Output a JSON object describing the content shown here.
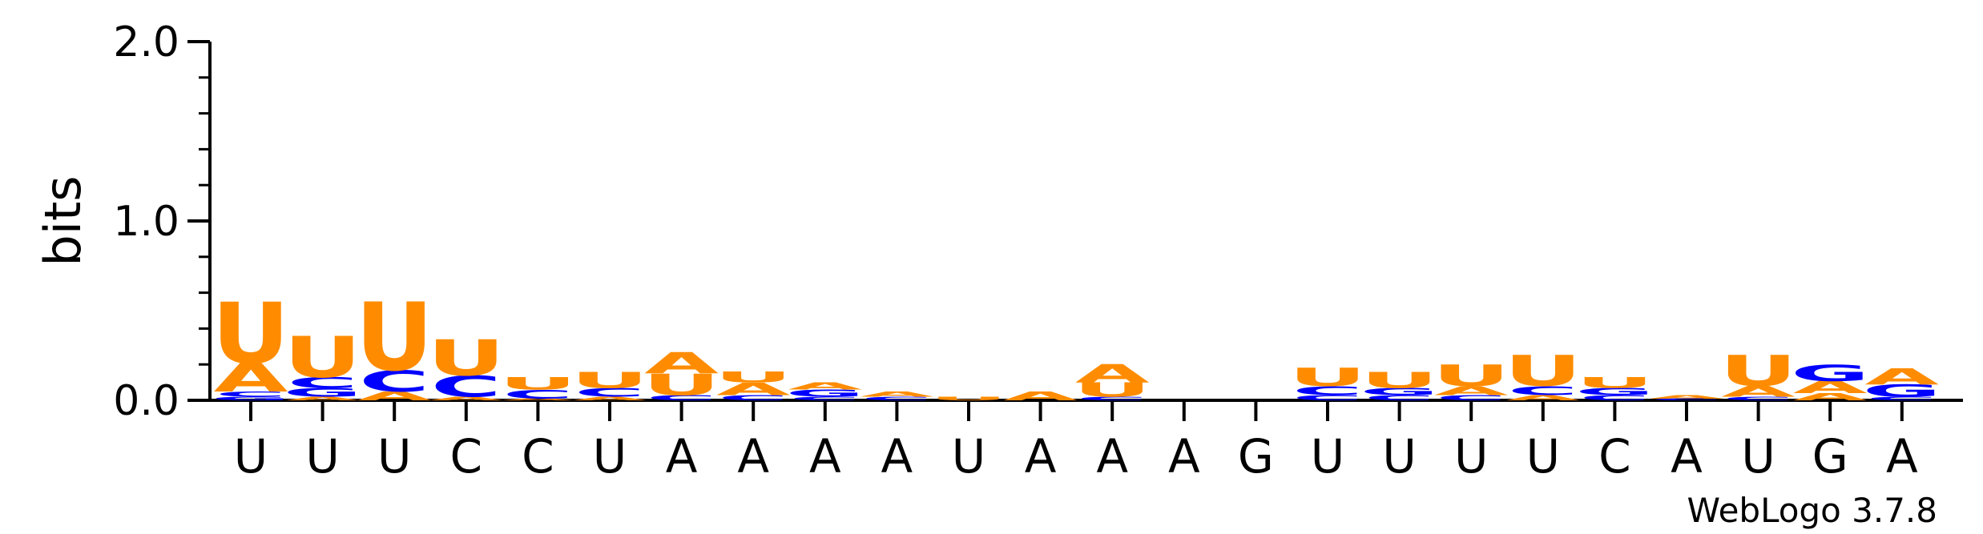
{
  "chart_data": {
    "type": "sequence-logo",
    "ylabel": "bits",
    "ylim": [
      0,
      2.0
    ],
    "yticks": [
      "0.0",
      "1.0",
      "2.0"
    ],
    "credit": "WebLogo 3.7.8",
    "colors": {
      "U": "#ff8c00",
      "A": "#ff8c00",
      "C": "#0000ff",
      "G": "#0000ff"
    },
    "positions": [
      {
        "label": "U",
        "stack": [
          {
            "letter": "G",
            "bits": 0.02
          },
          {
            "letter": "C",
            "bits": 0.03
          },
          {
            "letter": "A",
            "bits": 0.16
          },
          {
            "letter": "U",
            "bits": 0.34
          }
        ]
      },
      {
        "label": "U",
        "stack": [
          {
            "letter": "A",
            "bits": 0.02
          },
          {
            "letter": "G",
            "bits": 0.05
          },
          {
            "letter": "C",
            "bits": 0.06
          },
          {
            "letter": "U",
            "bits": 0.23
          }
        ]
      },
      {
        "label": "U",
        "stack": [
          {
            "letter": "A",
            "bits": 0.05
          },
          {
            "letter": "C",
            "bits": 0.12
          },
          {
            "letter": "U",
            "bits": 0.38
          }
        ]
      },
      {
        "label": "C",
        "stack": [
          {
            "letter": "A",
            "bits": 0.02
          },
          {
            "letter": "C",
            "bits": 0.12
          },
          {
            "letter": "U",
            "bits": 0.2
          }
        ]
      },
      {
        "label": "C",
        "stack": [
          {
            "letter": "A",
            "bits": 0.01
          },
          {
            "letter": "C",
            "bits": 0.05
          },
          {
            "letter": "U",
            "bits": 0.07
          }
        ]
      },
      {
        "label": "U",
        "stack": [
          {
            "letter": "A",
            "bits": 0.02
          },
          {
            "letter": "C",
            "bits": 0.05
          },
          {
            "letter": "U",
            "bits": 0.09
          }
        ]
      },
      {
        "label": "A",
        "stack": [
          {
            "letter": "C",
            "bits": 0.03
          },
          {
            "letter": "U",
            "bits": 0.12
          },
          {
            "letter": "A",
            "bits": 0.12
          }
        ]
      },
      {
        "label": "A",
        "stack": [
          {
            "letter": "C",
            "bits": 0.03
          },
          {
            "letter": "A",
            "bits": 0.07
          },
          {
            "letter": "U",
            "bits": 0.06
          }
        ]
      },
      {
        "label": "A",
        "stack": [
          {
            "letter": "C",
            "bits": 0.02
          },
          {
            "letter": "G",
            "bits": 0.04
          },
          {
            "letter": "A",
            "bits": 0.04
          }
        ]
      },
      {
        "label": "A",
        "stack": [
          {
            "letter": "C",
            "bits": 0.02
          },
          {
            "letter": "A",
            "bits": 0.03
          }
        ]
      },
      {
        "label": "U",
        "stack": [
          {
            "letter": "U",
            "bits": 0.02
          }
        ]
      },
      {
        "label": "A",
        "stack": [
          {
            "letter": "A",
            "bits": 0.05
          }
        ]
      },
      {
        "label": "A",
        "stack": [
          {
            "letter": "C",
            "bits": 0.02
          },
          {
            "letter": "U",
            "bits": 0.08
          },
          {
            "letter": "A",
            "bits": 0.1
          }
        ]
      },
      {
        "label": "A",
        "stack": []
      },
      {
        "label": "G",
        "stack": []
      },
      {
        "label": "U",
        "stack": [
          {
            "letter": "C",
            "bits": 0.03
          },
          {
            "letter": "C",
            "bits": 0.05
          },
          {
            "letter": "U",
            "bits": 0.1
          }
        ]
      },
      {
        "label": "U",
        "stack": [
          {
            "letter": "C",
            "bits": 0.03
          },
          {
            "letter": "G",
            "bits": 0.04
          },
          {
            "letter": "U",
            "bits": 0.09
          }
        ]
      },
      {
        "label": "U",
        "stack": [
          {
            "letter": "C",
            "bits": 0.03
          },
          {
            "letter": "A",
            "bits": 0.05
          },
          {
            "letter": "U",
            "bits": 0.12
          }
        ]
      },
      {
        "label": "U",
        "stack": [
          {
            "letter": "A",
            "bits": 0.03
          },
          {
            "letter": "C",
            "bits": 0.05
          },
          {
            "letter": "U",
            "bits": 0.17
          }
        ]
      },
      {
        "label": "C",
        "stack": [
          {
            "letter": "C",
            "bits": 0.03
          },
          {
            "letter": "G",
            "bits": 0.04
          },
          {
            "letter": "U",
            "bits": 0.06
          }
        ]
      },
      {
        "label": "A",
        "stack": [
          {
            "letter": "C",
            "bits": 0.01
          },
          {
            "letter": "A",
            "bits": 0.02
          }
        ]
      },
      {
        "label": "U",
        "stack": [
          {
            "letter": "C",
            "bits": 0.02
          },
          {
            "letter": "A",
            "bits": 0.06
          },
          {
            "letter": "U",
            "bits": 0.17
          }
        ]
      },
      {
        "label": "G",
        "stack": [
          {
            "letter": "A",
            "bits": 0.04
          },
          {
            "letter": "A",
            "bits": 0.07
          },
          {
            "letter": "G",
            "bits": 0.09
          }
        ]
      },
      {
        "label": "A",
        "stack": [
          {
            "letter": "C",
            "bits": 0.02
          },
          {
            "letter": "G",
            "bits": 0.07
          },
          {
            "letter": "A",
            "bits": 0.09
          }
        ]
      }
    ]
  }
}
